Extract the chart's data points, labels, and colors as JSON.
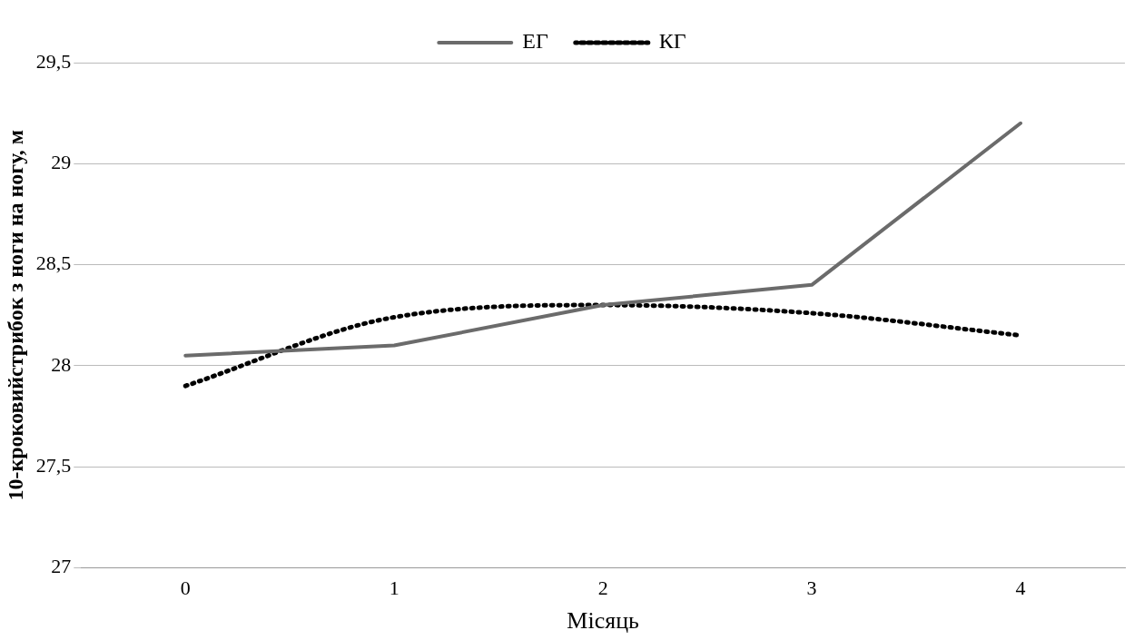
{
  "chart_data": {
    "type": "line",
    "xlabel": "Місяць",
    "ylabel": "10-кроковийстрибок з ноги на ногу, м",
    "categories": [
      "0",
      "1",
      "2",
      "3",
      "4"
    ],
    "series": [
      {
        "name": "ЕГ",
        "color": "#6b6b6b",
        "values": [
          28.05,
          28.1,
          28.3,
          28.4,
          29.2
        ],
        "line_style": "solid"
      },
      {
        "name": "КГ",
        "color": "#000000",
        "values": [
          27.9,
          28.24,
          28.3,
          28.26,
          28.15
        ],
        "line_style": "dotted"
      }
    ],
    "ylim": [
      27,
      29.5
    ],
    "yticks": [
      27,
      {
        "value": 27.5,
        "label": "27,5"
      },
      28,
      {
        "value": 28.5,
        "label": "28,5"
      },
      29,
      {
        "value": 29.5,
        "label": "29,5"
      }
    ],
    "grid": "y",
    "legend": "top",
    "marker": "none"
  }
}
